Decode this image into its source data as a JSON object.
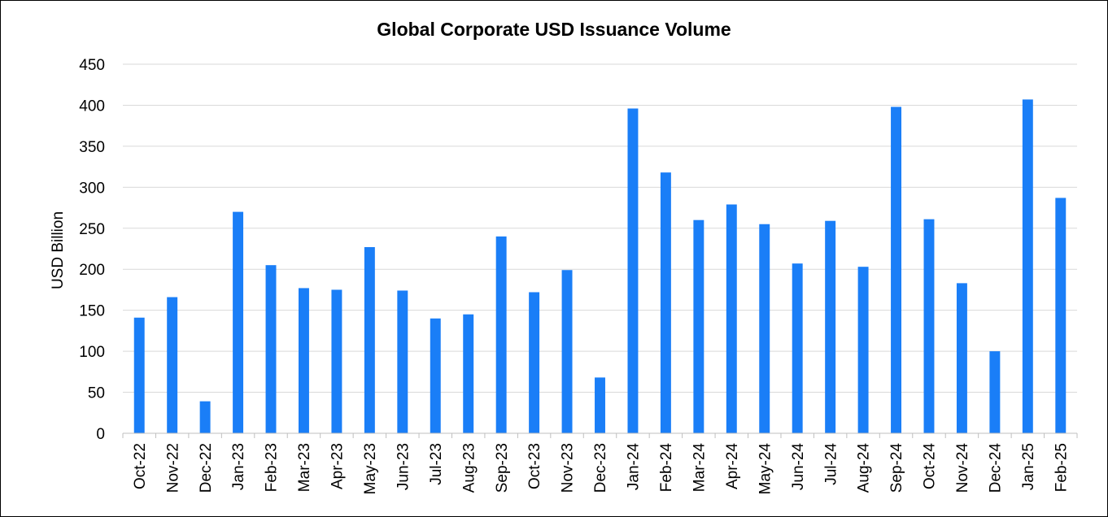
{
  "chart_data": {
    "type": "bar",
    "title": "Global Corporate USD Issuance Volume",
    "xlabel": "",
    "ylabel": "USD Billion",
    "ylim": [
      0,
      450
    ],
    "yticks": [
      "0",
      "50",
      "100",
      "150",
      "200",
      "250",
      "300",
      "350",
      "400",
      "450"
    ],
    "grid": true,
    "legend": "none",
    "bar_color": "#1a7ef7",
    "categories": [
      "Oct-22",
      "Nov-22",
      "Dec-22",
      "Jan-23",
      "Feb-23",
      "Mar-23",
      "Apr-23",
      "May-23",
      "Jun-23",
      "Jul-23",
      "Aug-23",
      "Sep-23",
      "Oct-23",
      "Nov-23",
      "Dec-23",
      "Jan-24",
      "Feb-24",
      "Mar-24",
      "Apr-24",
      "May-24",
      "Jun-24",
      "Jul-24",
      "Aug-24",
      "Sep-24",
      "Oct-24",
      "Nov-24",
      "Dec-24",
      "Jan-25",
      "Feb-25"
    ],
    "values": [
      141,
      166,
      39,
      270,
      205,
      177,
      175,
      227,
      174,
      140,
      145,
      240,
      172,
      199,
      68,
      396,
      318,
      260,
      279,
      255,
      207,
      259,
      203,
      398,
      261,
      183,
      100,
      407,
      287
    ]
  }
}
